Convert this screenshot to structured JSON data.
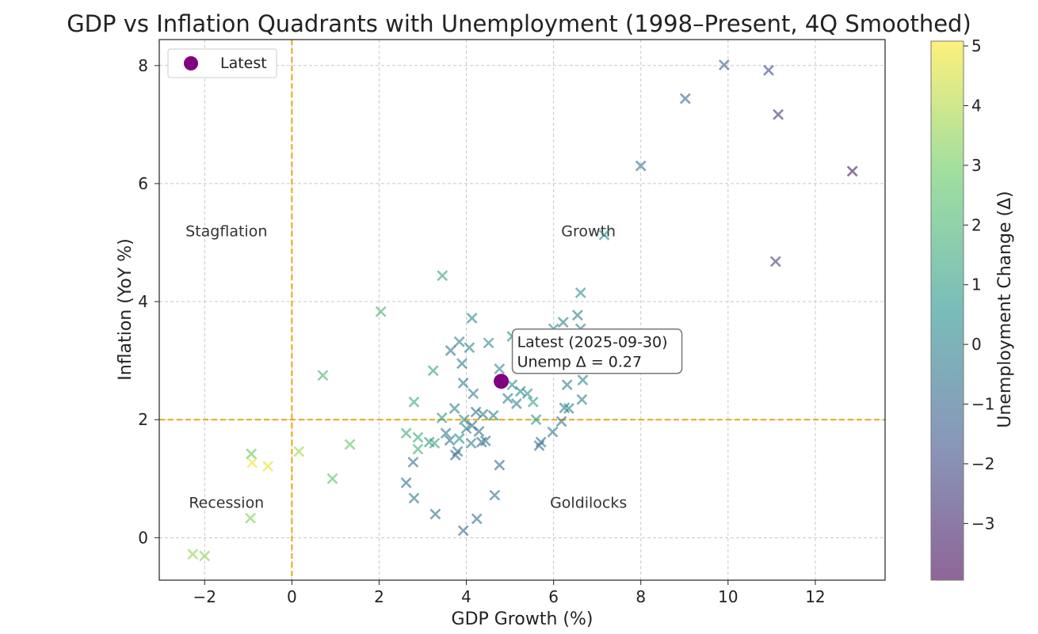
{
  "chart_data": {
    "type": "scatter",
    "title": "GDP vs Inflation Quadrants with Unemployment (1998–Present, 4Q Smoothed)",
    "xlabel": "GDP Growth (%)",
    "ylabel": "Inflation (YoY %)",
    "xlim": [
      -3.04,
      13.6
    ],
    "ylim": [
      -0.72,
      8.44
    ],
    "xticks": [
      -2,
      0,
      2,
      4,
      6,
      8,
      10,
      12
    ],
    "yticks": [
      0,
      2,
      4,
      6,
      8
    ],
    "grid": true,
    "reference_lines": {
      "x": 0,
      "y": 2,
      "color": "#e6a817"
    },
    "quadrant_labels": [
      {
        "text": "Stagflation",
        "x": -1.5,
        "y": 5.2
      },
      {
        "text": "Growth",
        "x": 6.8,
        "y": 5.2
      },
      {
        "text": "Recession",
        "x": -1.5,
        "y": 0.6
      },
      {
        "text": "Goldilocks",
        "x": 6.8,
        "y": 0.6
      }
    ],
    "colorbar": {
      "label": "Unemployment Change (Δ)",
      "range": [
        -3.95,
        5.08
      ],
      "ticks": [
        -3,
        -2,
        -1,
        0,
        1,
        2,
        3,
        4,
        5
      ],
      "colormap": "viridis"
    },
    "legend": {
      "label": "Latest",
      "placement": "top-left"
    },
    "latest": {
      "x": 4.8,
      "y": 2.65,
      "unemp_change": 0.27,
      "color": "#800080",
      "annotation_line1": "Latest (2025-09-30)",
      "annotation_line2": "Unemp Δ = 0.27"
    },
    "points": [
      [
        9.91,
        8.01,
        -1.3
      ],
      [
        10.93,
        7.92,
        -2.0
      ],
      [
        9.02,
        7.44,
        -1.2
      ],
      [
        11.15,
        7.17,
        -2.5
      ],
      [
        12.85,
        6.21,
        -3.3
      ],
      [
        8.0,
        6.3,
        -0.7
      ],
      [
        7.16,
        5.13,
        0.6
      ],
      [
        11.09,
        4.68,
        -2.3
      ],
      [
        3.45,
        4.44,
        1.2
      ],
      [
        6.62,
        4.15,
        0.5
      ],
      [
        2.04,
        3.83,
        1.8
      ],
      [
        4.13,
        3.72,
        0.2
      ],
      [
        6.22,
        3.65,
        0.0
      ],
      [
        6.55,
        3.77,
        -0.2
      ],
      [
        6.0,
        3.54,
        0.3
      ],
      [
        6.62,
        3.54,
        0.1
      ],
      [
        5.05,
        3.41,
        0.5
      ],
      [
        3.84,
        3.32,
        -0.2
      ],
      [
        4.51,
        3.3,
        0.3
      ],
      [
        3.64,
        3.17,
        -0.5
      ],
      [
        4.07,
        3.22,
        0.2
      ],
      [
        3.24,
        2.83,
        1.2
      ],
      [
        0.71,
        2.75,
        1.9
      ],
      [
        3.9,
        2.95,
        -0.3
      ],
      [
        4.76,
        2.86,
        0.2
      ],
      [
        3.93,
        2.62,
        -0.3
      ],
      [
        6.67,
        2.67,
        0.2
      ],
      [
        6.31,
        2.59,
        -0.2
      ],
      [
        5.05,
        2.59,
        0.4
      ],
      [
        4.16,
        2.44,
        -0.4
      ],
      [
        5.24,
        2.48,
        0.1
      ],
      [
        5.4,
        2.44,
        0.6
      ],
      [
        2.8,
        2.3,
        1.5
      ],
      [
        6.65,
        2.34,
        -0.1
      ],
      [
        4.95,
        2.36,
        -0.2
      ],
      [
        5.15,
        2.27,
        -0.3
      ],
      [
        5.53,
        2.3,
        1.0
      ],
      [
        6.25,
        2.2,
        -0.4
      ],
      [
        6.35,
        2.19,
        0.0
      ],
      [
        3.44,
        2.03,
        0.8
      ],
      [
        3.73,
        2.19,
        -0.2
      ],
      [
        4.22,
        2.13,
        -0.6
      ],
      [
        4.38,
        2.09,
        -0.3
      ],
      [
        4.62,
        2.07,
        -0.1
      ],
      [
        5.6,
        2.0,
        0.8
      ],
      [
        3.95,
        2.0,
        0.3
      ],
      [
        4.0,
        1.85,
        -0.2
      ],
      [
        4.13,
        1.9,
        -0.5
      ],
      [
        4.29,
        1.8,
        -0.7
      ],
      [
        6.18,
        1.97,
        -0.6
      ],
      [
        5.98,
        1.79,
        -0.4
      ],
      [
        2.62,
        1.77,
        1.5
      ],
      [
        2.89,
        1.7,
        1.5
      ],
      [
        3.15,
        1.62,
        0.8
      ],
      [
        3.27,
        1.6,
        1.3
      ],
      [
        3.53,
        1.77,
        -0.3
      ],
      [
        3.62,
        1.65,
        -0.6
      ],
      [
        3.84,
        1.68,
        0.4
      ],
      [
        4.11,
        1.6,
        -0.2
      ],
      [
        4.35,
        1.62,
        -0.8
      ],
      [
        4.44,
        1.64,
        -0.5
      ],
      [
        5.71,
        1.62,
        -0.7
      ],
      [
        5.67,
        1.56,
        -0.9
      ],
      [
        2.89,
        1.5,
        1.8
      ],
      [
        3.8,
        1.46,
        -0.4
      ],
      [
        3.75,
        1.4,
        -0.8
      ],
      [
        2.78,
        1.28,
        -0.6
      ],
      [
        4.76,
        1.23,
        -0.9
      ],
      [
        2.62,
        0.93,
        -0.6
      ],
      [
        2.8,
        0.67,
        -0.5
      ],
      [
        4.65,
        0.72,
        -0.7
      ],
      [
        3.29,
        0.4,
        -0.8
      ],
      [
        4.24,
        0.32,
        -0.7
      ],
      [
        3.93,
        0.12,
        -0.9
      ],
      [
        -0.93,
        1.42,
        2.8
      ],
      [
        -0.91,
        1.27,
        4.9
      ],
      [
        -0.55,
        1.21,
        4.8
      ],
      [
        0.16,
        1.46,
        3.8
      ],
      [
        1.33,
        1.58,
        2.8
      ],
      [
        0.93,
        1.0,
        2.5
      ],
      [
        -0.95,
        0.33,
        3.3
      ],
      [
        -2.27,
        -0.28,
        3.6
      ],
      [
        -2.0,
        -0.31,
        3.5
      ]
    ]
  }
}
